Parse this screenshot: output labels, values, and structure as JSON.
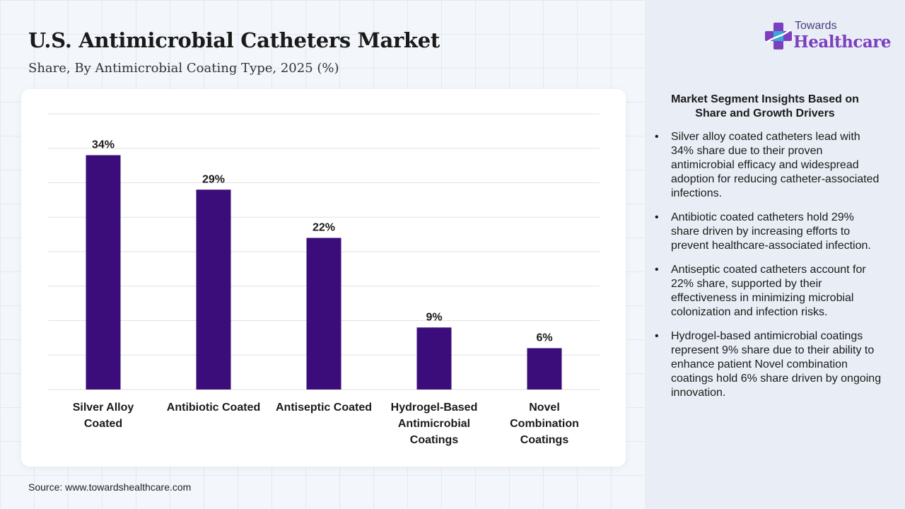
{
  "header": {
    "title": "U.S. Antimicrobial Catheters Market",
    "subtitle": "Share, By Antimicrobial Coating Type, 2025 (%)"
  },
  "logo": {
    "line1": "Towards",
    "line2": "Healthcare",
    "icon": "plus-cross-icon"
  },
  "source": "Source: www.towardshealthcare.com",
  "colors": {
    "bar": "#3b0d7a",
    "gridline": "#e2e2e2",
    "logo_accent": "#7b3fbf"
  },
  "chart_data": {
    "type": "bar",
    "categories": [
      [
        "Silver Alloy",
        "Coated"
      ],
      [
        "Antibiotic Coated"
      ],
      [
        "Antiseptic Coated"
      ],
      [
        "Hydrogel-Based",
        "Antimicrobial",
        "Coatings"
      ],
      [
        "Novel",
        "Combination",
        "Coatings"
      ]
    ],
    "values": [
      34,
      29,
      22,
      9,
      6
    ],
    "data_labels": [
      "34%",
      "29%",
      "22%",
      "9%",
      "6%"
    ],
    "title": "U.S. Antimicrobial Catheters Market",
    "subtitle": "Share, By Antimicrobial Coating Type, 2025 (%)",
    "xlabel": "",
    "ylabel": "",
    "ylim": [
      0,
      40
    ],
    "grid": true,
    "legend": "none"
  },
  "insights": {
    "title_lines": [
      "Market Segment Insights Based on",
      "Share and Growth Drivers"
    ],
    "items": [
      "Silver alloy coated catheters lead with 34% share due to their proven antimicrobial efficacy and widespread adoption for reducing catheter-associated infections.",
      "Antibiotic coated catheters hold 29% share driven by increasing efforts to prevent healthcare-associated infection.",
      "Antiseptic coated catheters account for 22% share, supported by their effectiveness in minimizing microbial colonization and infection risks.",
      "Hydrogel-based antimicrobial coatings represent 9% share due to their ability to enhance patient Novel combination coatings hold 6% share driven by ongoing innovation."
    ]
  }
}
